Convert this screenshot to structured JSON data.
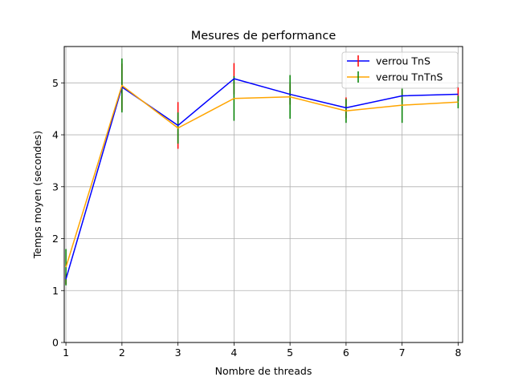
{
  "chart_data": {
    "type": "line",
    "title": "Mesures de performance",
    "xlabel": "Nombre de threads",
    "ylabel": "Temps moyen (secondes)",
    "x": [
      1,
      2,
      3,
      4,
      5,
      6,
      7,
      8
    ],
    "xlim": [
      0.97,
      8.08
    ],
    "ylim": [
      0,
      5.7
    ],
    "xticks": [
      1,
      2,
      3,
      4,
      5,
      6,
      7,
      8
    ],
    "yticks": [
      0,
      1,
      2,
      3,
      4,
      5
    ],
    "grid": true,
    "legend": "top-right",
    "series": [
      {
        "name": "verrou TnS",
        "color": "#0000ff",
        "errcolor": "#ff0000",
        "values": [
          1.22,
          4.92,
          4.18,
          5.08,
          4.78,
          4.52,
          4.75,
          4.78
        ],
        "errors": [
          0.1,
          0.45,
          0.45,
          0.3,
          0.2,
          0.2,
          0.13,
          0.13
        ]
      },
      {
        "name": "verrou TnTnS",
        "color": "#ffa500",
        "errcolor": "#008000",
        "values": [
          1.45,
          4.95,
          4.13,
          4.7,
          4.73,
          4.46,
          4.57,
          4.63
        ],
        "errors": [
          0.35,
          0.52,
          0.3,
          0.43,
          0.42,
          0.23,
          0.34,
          0.12
        ]
      }
    ]
  }
}
